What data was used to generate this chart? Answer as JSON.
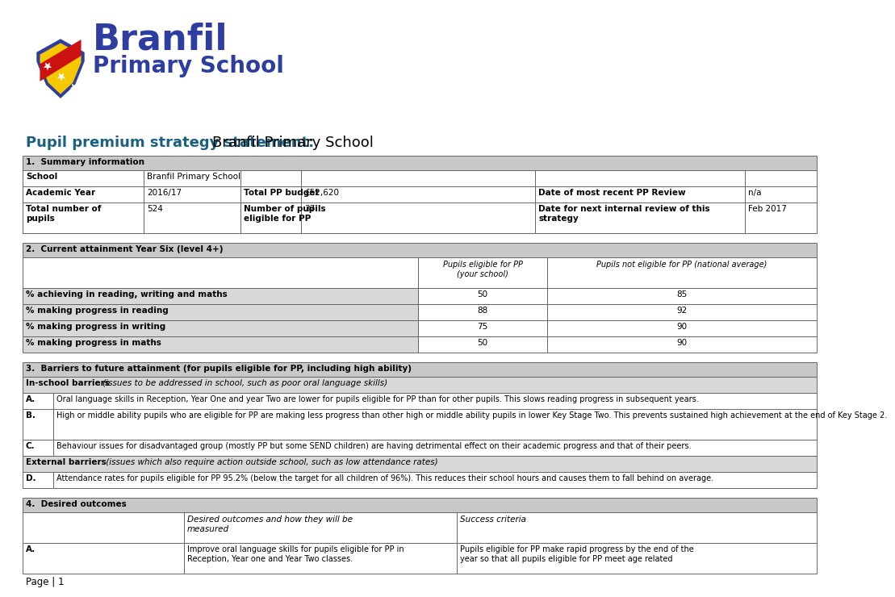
{
  "title_bold": "Pupil premium strategy statement:",
  "title_normal": " Branfil Primary School",
  "page_label": "Page | 1",
  "section1_header": "1.  Summary information",
  "section2_header": "2.  Current attainment Year Six (level 4+)",
  "section3_header": "3.  Barriers to future attainment (for pupils eligible for PP, including high ability)",
  "section3_inschool": "In-school barriers",
  "section3_inschool_italic": " (issues to be addressed in school, such as poor oral language skills)",
  "section3_rows": [
    [
      "A.",
      "Oral language skills in Reception, Year One and year Two are lower for pupils eligible for PP than for other pupils. This slows reading progress in subsequent years."
    ],
    [
      "B.",
      "High or middle ability pupils who are eligible for PP are making less progress than other high or middle ability pupils in lower Key Stage Two. This prevents sustained high achievement at the end of Key Stage 2."
    ],
    [
      "C.",
      "Behaviour issues for disadvantaged group (mostly PP but some SEND children) are having detrimental effect on their academic progress and that of their peers."
    ]
  ],
  "section3_external": "External barriers",
  "section3_external_italic": " (issues which also require action outside school, such as low attendance rates)",
  "section3_ext_rows": [
    [
      "D.",
      "Attendance rates for pupils eligible for PP 95.2% (below the target for all children of 96%). This reduces their school hours and causes them to fall behind on average."
    ]
  ],
  "section4_header": "4.  Desired outcomes",
  "section4_col2": "Desired outcomes and how they will be\nmeasured",
  "section4_col3": "Success criteria",
  "section4_rows": [
    [
      "A.",
      "Improve oral language skills for pupils eligible for PP in\nReception, Year one and Year Two classes.",
      "Pupils eligible for PP make rapid progress by the end of the\nyear so that all pupils eligible for PP meet age related"
    ]
  ],
  "header_bg": "#c8c8c8",
  "subheader_bg": "#d8d8d8",
  "white_bg": "#ffffff",
  "border_color": "#666666",
  "title_color_bold": "#1a6080",
  "branfil_color": "#2e3da0",
  "shield_blue": "#2e3da0",
  "shield_yellow": "#f5c800",
  "shield_red": "#cc1111"
}
